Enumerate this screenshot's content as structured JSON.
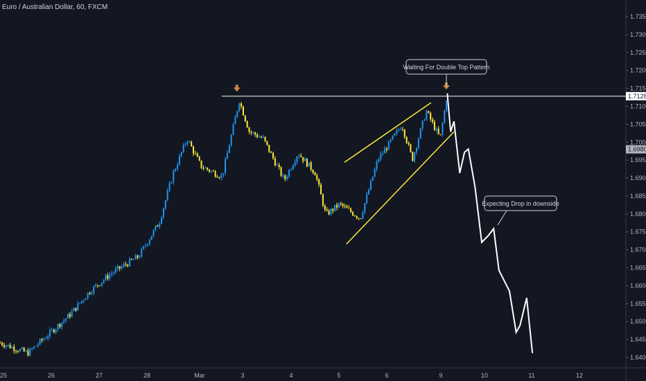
{
  "header": {
    "title": "Euro / Australian Dollar, 60, FXCM"
  },
  "chart_data": {
    "type": "candlestick",
    "title": "Euro / Australian Dollar, 60, FXCM",
    "ylim": [
      1.638,
      1.7375
    ],
    "y_ticks": [
      "1.73500",
      "1.73000",
      "1.72500",
      "1.72000",
      "1.71500",
      "1.71000",
      "1.70500",
      "1.70000",
      "1.69500",
      "1.69000",
      "1.68500",
      "1.68000",
      "1.67500",
      "1.67000",
      "1.66500",
      "1.66000",
      "1.65500",
      "1.65000",
      "1.64500",
      "1.64000"
    ],
    "x_ticks": [
      "25",
      "26",
      "27",
      "28",
      "Mar",
      "3",
      "4",
      "5",
      "6",
      "9",
      "10",
      "11",
      "12"
    ],
    "resistance_level": {
      "value": 1.71283,
      "label": "1.71283"
    },
    "current_price": {
      "value": 1.69801,
      "label": "1.69801"
    },
    "price_path": [
      [
        -0.07,
        1.6441
      ],
      [
        0.51,
        1.6412
      ],
      [
        1.38,
        1.6518
      ],
      [
        1.81,
        1.6585
      ],
      [
        2.25,
        1.6634
      ],
      [
        2.83,
        1.6682
      ],
      [
        3.26,
        1.6778
      ],
      [
        3.55,
        1.6914
      ],
      [
        3.84,
        1.701
      ],
      [
        4.13,
        1.6933
      ],
      [
        4.57,
        1.6904
      ],
      [
        4.93,
        1.7116
      ],
      [
        5.14,
        1.703
      ],
      [
        5.43,
        1.701
      ],
      [
        5.87,
        1.6894
      ],
      [
        6.16,
        1.697
      ],
      [
        6.52,
        1.6914
      ],
      [
        6.74,
        1.6798
      ],
      [
        7.03,
        1.6827
      ],
      [
        7.46,
        1.6788
      ],
      [
        7.83,
        1.6952
      ],
      [
        8.04,
        1.6991
      ],
      [
        8.33,
        1.7049
      ],
      [
        8.55,
        1.6952
      ],
      [
        8.84,
        1.7087
      ],
      [
        9.13,
        1.701
      ],
      [
        9.28,
        1.7136
      ]
    ],
    "projection_path": [
      [
        9.28,
        1.7136
      ],
      [
        9.35,
        1.7029
      ],
      [
        9.42,
        1.7058
      ],
      [
        9.54,
        1.6914
      ],
      [
        9.64,
        1.6972
      ],
      [
        9.72,
        1.6981
      ],
      [
        9.86,
        1.6875
      ],
      [
        10.0,
        1.6721
      ],
      [
        10.14,
        1.674
      ],
      [
        10.25,
        1.6759
      ],
      [
        10.36,
        1.6643
      ],
      [
        10.58,
        1.6585
      ],
      [
        10.72,
        1.647
      ],
      [
        10.8,
        1.6489
      ],
      [
        10.94,
        1.6566
      ],
      [
        11.06,
        1.6412
      ]
    ],
    "channel": {
      "upper": [
        [
          7.13,
          1.6944
        ],
        [
          8.94,
          1.711
        ]
      ],
      "lower": [
        [
          7.17,
          1.6716
        ],
        [
          9.42,
          1.7029
        ]
      ]
    },
    "top_markers": [
      [
        4.88,
        1.7135
      ],
      [
        9.26,
        1.7141
      ]
    ],
    "annotations": [
      {
        "text": "Waiting For Double Top Pattern"
      },
      {
        "text": "Expecting Drop in downside"
      }
    ],
    "colors": {
      "up": "#2196f3",
      "down": "#ffeb3b",
      "projection": "#ffffff",
      "channel": "#ffeb3b",
      "marker": "#c8873a"
    }
  }
}
